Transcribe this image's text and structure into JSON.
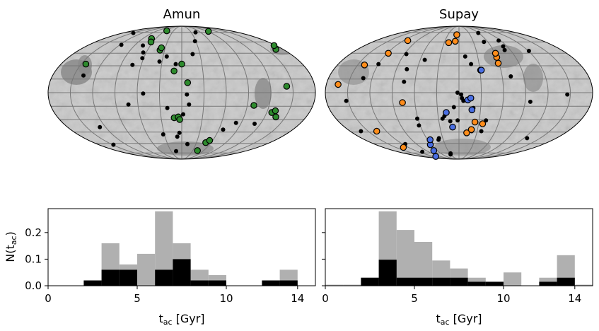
{
  "colors": {
    "map_base": "#c9c9c9",
    "map_dark": "#8a8a8a",
    "grid": "#777777",
    "black_pts": "#000000",
    "green": "#2e8b2e",
    "orange": "#ff8c1a",
    "blue": "#4a6fe3",
    "hist_gray": "#b0b0b0",
    "hist_black": "#000000"
  },
  "chart_data": [
    {
      "type": "scatter",
      "projection": "mollweide",
      "title": "Amun",
      "black_points": [
        [
          -148,
          74
        ],
        [
          -148,
          -62
        ],
        [
          -137,
          19
        ],
        [
          -129,
          -39
        ],
        [
          -117,
          56
        ],
        [
          -74,
          55
        ],
        [
          -73,
          31
        ],
        [
          -73,
          -13
        ],
        [
          -65,
          46
        ],
        [
          -62,
          39
        ],
        [
          -52,
          -1
        ],
        [
          -34,
          35
        ],
        [
          -32,
          -48
        ],
        [
          -24,
          41
        ],
        [
          -20,
          -17
        ],
        [
          -16,
          -72
        ],
        [
          -9,
          32
        ],
        [
          -8,
          -51
        ],
        [
          -4,
          -46
        ],
        [
          2,
          -24
        ],
        [
          7,
          -2
        ],
        [
          10,
          -13
        ],
        [
          12,
          -61
        ],
        [
          18,
          44
        ],
        [
          28,
          61
        ],
        [
          44,
          75
        ],
        [
          67,
          -42
        ],
        [
          82,
          -34
        ],
        [
          111,
          -35
        ]
      ],
      "green_points": [
        [
          -143,
          32
        ],
        [
          -70,
          65
        ],
        [
          -64,
          60
        ],
        [
          -55,
          78
        ],
        [
          -38,
          49
        ],
        [
          -37,
          52
        ],
        [
          -11,
          24
        ],
        [
          -11,
          -28
        ],
        [
          -5,
          -27
        ],
        [
          -3,
          -30
        ],
        [
          0,
          32
        ],
        [
          8,
          11
        ],
        [
          43,
          -71
        ],
        [
          49,
          -59
        ],
        [
          54,
          -56
        ],
        [
          93,
          77
        ],
        [
          99,
          -14
        ],
        [
          127,
          -22
        ],
        [
          131,
          -20
        ],
        [
          136,
          -27
        ],
        [
          142,
          7
        ],
        [
          167,
          50
        ],
        [
          176,
          55
        ]
      ]
    },
    {
      "type": "scatter",
      "projection": "mollweide",
      "title": "Supay",
      "black_points": [
        [
          -162,
          -44
        ],
        [
          -153,
          -9
        ],
        [
          -132,
          16
        ],
        [
          -120,
          32
        ],
        [
          -114,
          -61
        ],
        [
          -108,
          -73
        ],
        [
          -87,
          44
        ],
        [
          -75,
          26
        ],
        [
          -75,
          12
        ],
        [
          -62,
          -37
        ],
        [
          -61,
          -29
        ],
        [
          -53,
          37
        ],
        [
          -39,
          -55
        ],
        [
          -37,
          -53
        ],
        [
          -31,
          -78
        ],
        [
          -28,
          -76
        ],
        [
          -24,
          -29
        ],
        [
          -21,
          -26
        ],
        [
          -13,
          -32
        ],
        [
          -7,
          -16
        ],
        [
          -2,
          -31
        ],
        [
          -2,
          0
        ],
        [
          3,
          -2
        ],
        [
          4,
          -6
        ],
        [
          6,
          -9
        ],
        [
          10,
          41
        ],
        [
          18,
          32
        ],
        [
          20,
          -17
        ],
        [
          21,
          -44
        ],
        [
          37,
          -44
        ],
        [
          40,
          -31
        ],
        [
          52,
          60
        ],
        [
          59,
          74
        ],
        [
          72,
          18
        ],
        [
          80,
          49
        ],
        [
          83,
          54
        ],
        [
          86,
          62
        ],
        [
          97,
          -10
        ],
        [
          121,
          48
        ],
        [
          126,
          -53
        ],
        [
          146,
          -2
        ]
      ],
      "orange_points": [
        [
          -164,
          9
        ],
        [
          -140,
          31
        ],
        [
          -136,
          -44
        ],
        [
          -132,
          -66
        ],
        [
          -118,
          45
        ],
        [
          -111,
          62
        ],
        [
          -77,
          -11
        ],
        [
          -21,
          59
        ],
        [
          -8,
          61
        ],
        [
          -6,
          71
        ],
        [
          13,
          -46
        ],
        [
          20,
          -42
        ],
        [
          24,
          -33
        ],
        [
          36,
          -35
        ],
        [
          59,
          33
        ],
        [
          60,
          40
        ],
        [
          61,
          45
        ]
      ],
      "blue_points": [
        [
          -111,
          -82
        ],
        [
          -69,
          -71
        ],
        [
          -62,
          -62
        ],
        [
          -55,
          -55
        ],
        [
          -18,
          -22
        ],
        [
          -10,
          -39
        ],
        [
          12,
          -8
        ],
        [
          16,
          -6
        ],
        [
          18,
          -19
        ],
        [
          31,
          25
        ],
        [
          32,
          25
        ]
      ]
    },
    {
      "type": "bar",
      "histogram": true,
      "xlabel": "tac [Gyr]",
      "ylabel": "N(tac)",
      "xlim": [
        0,
        15
      ],
      "ylim": [
        0,
        0.29
      ],
      "xticks": [
        "0",
        "5",
        "10",
        "14"
      ],
      "yticks": [
        "0.0",
        "0.1",
        "0.2"
      ],
      "bin_width": 1,
      "bin_edges_start": 0,
      "series": [
        {
          "name": "gray",
          "values": [
            0,
            0,
            0,
            0.16,
            0.08,
            0.12,
            0.28,
            0.16,
            0.06,
            0.04,
            0,
            0,
            0,
            0.06,
            0
          ]
        },
        {
          "name": "black",
          "values": [
            0,
            0,
            0.02,
            0.06,
            0.06,
            0,
            0.06,
            0.1,
            0.02,
            0.02,
            0,
            0,
            0.02,
            0.02,
            0
          ]
        }
      ]
    },
    {
      "type": "bar",
      "histogram": true,
      "xlabel": "tac [Gyr]",
      "ylabel": "",
      "xlim": [
        0,
        15
      ],
      "ylim": [
        0,
        0.29
      ],
      "xticks": [
        "0",
        "5",
        "10",
        "14"
      ],
      "yticks": [],
      "bin_width": 1,
      "bin_edges_start": 0,
      "series": [
        {
          "name": "gray",
          "values": [
            0.004,
            0.004,
            0.03,
            0.28,
            0.21,
            0.165,
            0.095,
            0.065,
            0.03,
            0.015,
            0.05,
            0,
            0.03,
            0.115,
            0.004
          ]
        },
        {
          "name": "black",
          "values": [
            0,
            0,
            0.03,
            0.098,
            0.03,
            0.03,
            0.03,
            0.03,
            0.015,
            0.015,
            0,
            0,
            0.015,
            0.03,
            0
          ]
        }
      ]
    }
  ]
}
